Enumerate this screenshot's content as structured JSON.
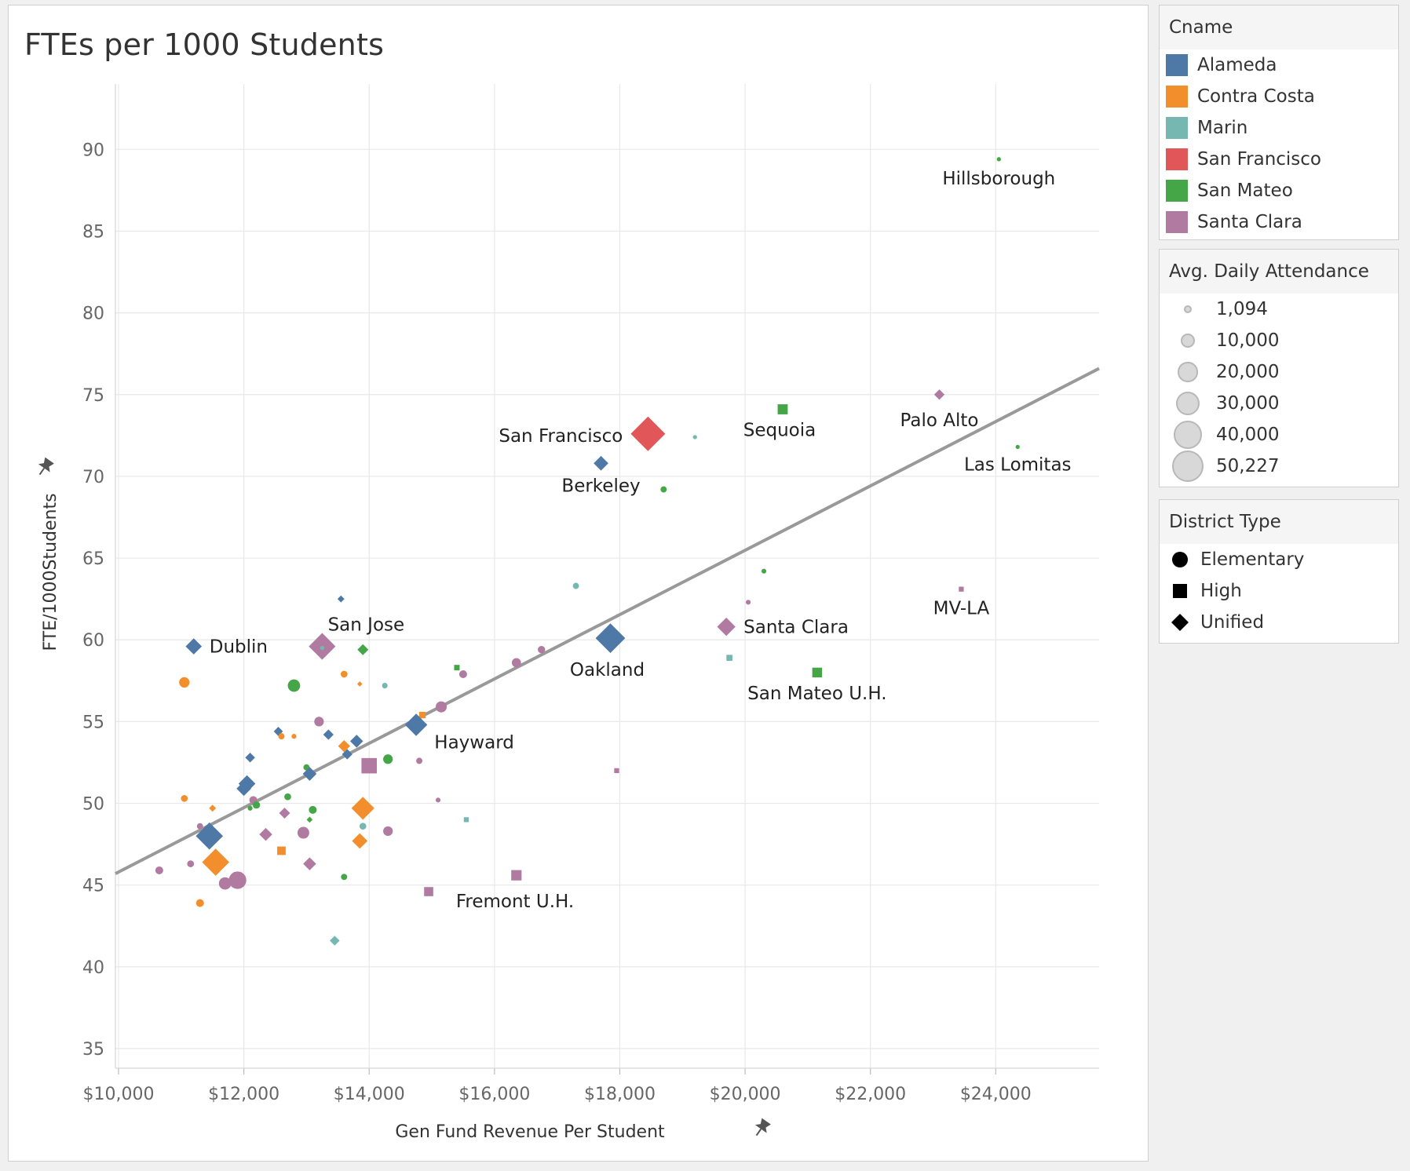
{
  "title": "FTEs per 1000 Students",
  "colors": {
    "Alameda": "#4e79a7",
    "Contra Costa": "#f28e2b",
    "Marin": "#76b7b2",
    "San Francisco": "#e15759",
    "San Mateo": "#44a647",
    "Santa Clara": "#b07aa1",
    "trend": "#999999",
    "grid": "#e8e8e8"
  },
  "legends": {
    "cname": {
      "title": "Cname",
      "items": [
        "Alameda",
        "Contra Costa",
        "Marin",
        "San Francisco",
        "San Mateo",
        "Santa Clara"
      ]
    },
    "size": {
      "title": "Avg. Daily Attendance",
      "items": [
        {
          "label": "1,094",
          "value": 1094
        },
        {
          "label": "10,000",
          "value": 10000
        },
        {
          "label": "20,000",
          "value": 20000
        },
        {
          "label": "30,000",
          "value": 30000
        },
        {
          "label": "40,000",
          "value": 40000
        },
        {
          "label": "50,227",
          "value": 50227
        }
      ]
    },
    "district_type": {
      "title": "District Type",
      "items": [
        {
          "label": "Elementary",
          "shape": "circle"
        },
        {
          "label": "High",
          "shape": "square"
        },
        {
          "label": "Unified",
          "shape": "diamond"
        }
      ]
    }
  },
  "chart_data": {
    "type": "scatter",
    "title": "FTEs per 1000 Students",
    "xlabel": "Gen Fund Revenue Per Student",
    "ylabel": "FTE/1000Students",
    "xlim": [
      9950,
      25650
    ],
    "ylim": [
      33.8,
      94
    ],
    "x_ticks": [
      10000,
      12000,
      14000,
      16000,
      18000,
      20000,
      22000,
      24000
    ],
    "x_tick_labels": [
      "$10,000",
      "$12,000",
      "$14,000",
      "$16,000",
      "$18,000",
      "$20,000",
      "$22,000",
      "$24,000"
    ],
    "y_ticks": [
      35,
      40,
      45,
      50,
      55,
      60,
      65,
      70,
      75,
      80,
      85,
      90
    ],
    "grid": true,
    "trend_line": {
      "x": [
        9950,
        25650
      ],
      "y": [
        45.7,
        76.6
      ]
    },
    "points": [
      {
        "x": 24050,
        "y": 89.4,
        "county": "San Mateo",
        "type": "Elementary",
        "ada": 1100,
        "label": "Hillsborough"
      },
      {
        "x": 23100,
        "y": 75.0,
        "county": "Santa Clara",
        "type": "Unified",
        "ada": 4500,
        "label": "Palo Alto"
      },
      {
        "x": 24350,
        "y": 71.8,
        "county": "San Mateo",
        "type": "Elementary",
        "ada": 1094,
        "label": "Las Lomitas"
      },
      {
        "x": 23450,
        "y": 63.1,
        "county": "Santa Clara",
        "type": "High",
        "ada": 2000,
        "label": "MV-LA"
      },
      {
        "x": 18450,
        "y": 72.6,
        "county": "San Francisco",
        "type": "Unified",
        "ada": 50227,
        "label": "San Francisco"
      },
      {
        "x": 20600,
        "y": 74.1,
        "county": "San Mateo",
        "type": "High",
        "ada": 8500,
        "label": "Sequoia"
      },
      {
        "x": 19200,
        "y": 72.4,
        "county": "Marin",
        "type": "Elementary",
        "ada": 1094
      },
      {
        "x": 17700,
        "y": 70.8,
        "county": "Alameda",
        "type": "Unified",
        "ada": 9000,
        "label": "Berkeley"
      },
      {
        "x": 18700,
        "y": 69.2,
        "county": "San Mateo",
        "type": "Elementary",
        "ada": 2500
      },
      {
        "x": 20300,
        "y": 64.2,
        "county": "San Mateo",
        "type": "Elementary",
        "ada": 1500
      },
      {
        "x": 17300,
        "y": 63.3,
        "county": "Marin",
        "type": "Elementary",
        "ada": 2500
      },
      {
        "x": 20050,
        "y": 62.3,
        "county": "Santa Clara",
        "type": "Elementary",
        "ada": 1500
      },
      {
        "x": 13550,
        "y": 62.5,
        "county": "Alameda",
        "type": "Unified",
        "ada": 2000
      },
      {
        "x": 19700,
        "y": 60.8,
        "county": "Santa Clara",
        "type": "Unified",
        "ada": 14000,
        "label": "Santa Clara"
      },
      {
        "x": 17850,
        "y": 60.1,
        "county": "Alameda",
        "type": "Unified",
        "ada": 37000,
        "label": "Oakland"
      },
      {
        "x": 19750,
        "y": 58.9,
        "county": "Marin",
        "type": "High",
        "ada": 3000
      },
      {
        "x": 21150,
        "y": 58.0,
        "county": "San Mateo",
        "type": "High",
        "ada": 8000,
        "label": "San Mateo U.H."
      },
      {
        "x": 11200,
        "y": 59.6,
        "county": "Alameda",
        "type": "Unified",
        "ada": 11000,
        "label": "Dublin"
      },
      {
        "x": 13250,
        "y": 59.6,
        "county": "Santa Clara",
        "type": "Unified",
        "ada": 30000,
        "label": "San Jose"
      },
      {
        "x": 13250,
        "y": 59.5,
        "county": "Marin",
        "type": "Elementary",
        "ada": 1100
      },
      {
        "x": 13900,
        "y": 59.4,
        "county": "San Mateo",
        "type": "Unified",
        "ada": 5000
      },
      {
        "x": 16750,
        "y": 59.4,
        "county": "Santa Clara",
        "type": "Elementary",
        "ada": 3500
      },
      {
        "x": 16350,
        "y": 58.6,
        "county": "Santa Clara",
        "type": "Elementary",
        "ada": 5500
      },
      {
        "x": 15400,
        "y": 58.3,
        "county": "San Mateo",
        "type": "High",
        "ada": 2500
      },
      {
        "x": 15500,
        "y": 57.9,
        "county": "Santa Clara",
        "type": "Elementary",
        "ada": 4000
      },
      {
        "x": 13600,
        "y": 57.9,
        "county": "Contra Costa",
        "type": "Elementary",
        "ada": 3000
      },
      {
        "x": 13850,
        "y": 57.3,
        "county": "Contra Costa",
        "type": "Unified",
        "ada": 1094
      },
      {
        "x": 14250,
        "y": 57.2,
        "county": "Marin",
        "type": "Elementary",
        "ada": 2000
      },
      {
        "x": 11050,
        "y": 57.4,
        "county": "Contra Costa",
        "type": "Elementary",
        "ada": 7000
      },
      {
        "x": 12800,
        "y": 57.2,
        "county": "San Mateo",
        "type": "Elementary",
        "ada": 10000
      },
      {
        "x": 15150,
        "y": 55.9,
        "county": "Santa Clara",
        "type": "Elementary",
        "ada": 8000
      },
      {
        "x": 14850,
        "y": 55.4,
        "county": "Contra Costa",
        "type": "High",
        "ada": 3500
      },
      {
        "x": 14750,
        "y": 54.8,
        "county": "Alameda",
        "type": "Unified",
        "ada": 21000,
        "label": "Hayward"
      },
      {
        "x": 13200,
        "y": 55.0,
        "county": "Santa Clara",
        "type": "Elementary",
        "ada": 6000
      },
      {
        "x": 12550,
        "y": 54.4,
        "county": "Alameda",
        "type": "Unified",
        "ada": 3500
      },
      {
        "x": 12600,
        "y": 54.1,
        "county": "Contra Costa",
        "type": "Elementary",
        "ada": 2500
      },
      {
        "x": 12800,
        "y": 54.1,
        "county": "Contra Costa",
        "type": "Elementary",
        "ada": 1500
      },
      {
        "x": 13350,
        "y": 54.2,
        "county": "Alameda",
        "type": "Unified",
        "ada": 4500
      },
      {
        "x": 13800,
        "y": 53.8,
        "county": "Alameda",
        "type": "Unified",
        "ada": 7000
      },
      {
        "x": 13600,
        "y": 53.5,
        "county": "Contra Costa",
        "type": "Unified",
        "ada": 6000
      },
      {
        "x": 13650,
        "y": 53.0,
        "county": "Alameda",
        "type": "Unified",
        "ada": 4500
      },
      {
        "x": 12100,
        "y": 52.8,
        "county": "Alameda",
        "type": "Unified",
        "ada": 4000
      },
      {
        "x": 14000,
        "y": 52.3,
        "county": "Santa Clara",
        "type": "High",
        "ada": 20000
      },
      {
        "x": 14300,
        "y": 52.7,
        "county": "San Mateo",
        "type": "Elementary",
        "ada": 6000
      },
      {
        "x": 14800,
        "y": 52.6,
        "county": "Santa Clara",
        "type": "Elementary",
        "ada": 2500
      },
      {
        "x": 13000,
        "y": 52.2,
        "county": "San Mateo",
        "type": "Elementary",
        "ada": 2500
      },
      {
        "x": 13050,
        "y": 51.8,
        "county": "Alameda",
        "type": "Unified",
        "ada": 8000
      },
      {
        "x": 17950,
        "y": 52.0,
        "county": "Santa Clara",
        "type": "High",
        "ada": 2000
      },
      {
        "x": 12050,
        "y": 51.2,
        "county": "Alameda",
        "type": "Unified",
        "ada": 12000
      },
      {
        "x": 12000,
        "y": 50.9,
        "county": "Alameda",
        "type": "Unified",
        "ada": 9000
      },
      {
        "x": 11050,
        "y": 50.3,
        "county": "Contra Costa",
        "type": "Elementary",
        "ada": 3000
      },
      {
        "x": 12150,
        "y": 50.2,
        "county": "Santa Clara",
        "type": "Elementary",
        "ada": 4000
      },
      {
        "x": 12700,
        "y": 50.4,
        "county": "San Mateo",
        "type": "Elementary",
        "ada": 3000
      },
      {
        "x": 15100,
        "y": 50.2,
        "county": "Santa Clara",
        "type": "Elementary",
        "ada": 1500
      },
      {
        "x": 12200,
        "y": 49.9,
        "county": "San Mateo",
        "type": "Elementary",
        "ada": 3500
      },
      {
        "x": 11500,
        "y": 49.7,
        "county": "Contra Costa",
        "type": "Unified",
        "ada": 2000
      },
      {
        "x": 12100,
        "y": 49.7,
        "county": "San Mateo",
        "type": "Elementary",
        "ada": 1500
      },
      {
        "x": 13900,
        "y": 49.7,
        "county": "Contra Costa",
        "type": "Unified",
        "ada": 22000
      },
      {
        "x": 13100,
        "y": 49.6,
        "county": "San Mateo",
        "type": "Elementary",
        "ada": 4000
      },
      {
        "x": 12650,
        "y": 49.4,
        "county": "Santa Clara",
        "type": "Unified",
        "ada": 5000
      },
      {
        "x": 13050,
        "y": 49.0,
        "county": "San Mateo",
        "type": "Unified",
        "ada": 1500
      },
      {
        "x": 15550,
        "y": 49.0,
        "county": "Marin",
        "type": "High",
        "ada": 2000
      },
      {
        "x": 11300,
        "y": 48.6,
        "county": "Santa Clara",
        "type": "Elementary",
        "ada": 2500
      },
      {
        "x": 13900,
        "y": 48.6,
        "county": "Marin",
        "type": "Elementary",
        "ada": 3000
      },
      {
        "x": 14300,
        "y": 48.3,
        "county": "Santa Clara",
        "type": "Elementary",
        "ada": 6000
      },
      {
        "x": 11450,
        "y": 48.0,
        "county": "Alameda",
        "type": "Unified",
        "ada": 31000
      },
      {
        "x": 12350,
        "y": 48.1,
        "county": "Santa Clara",
        "type": "Unified",
        "ada": 7000
      },
      {
        "x": 12950,
        "y": 48.2,
        "county": "Santa Clara",
        "type": "Elementary",
        "ada": 9000
      },
      {
        "x": 13850,
        "y": 47.7,
        "county": "Contra Costa",
        "type": "Unified",
        "ada": 10000
      },
      {
        "x": 12600,
        "y": 47.1,
        "county": "Contra Costa",
        "type": "High",
        "ada": 6000
      },
      {
        "x": 11550,
        "y": 46.4,
        "county": "Contra Costa",
        "type": "Unified",
        "ada": 31000
      },
      {
        "x": 11150,
        "y": 46.3,
        "county": "Santa Clara",
        "type": "Elementary",
        "ada": 3000
      },
      {
        "x": 13050,
        "y": 46.3,
        "county": "Santa Clara",
        "type": "Unified",
        "ada": 7000
      },
      {
        "x": 10650,
        "y": 45.9,
        "county": "Santa Clara",
        "type": "Elementary",
        "ada": 4000
      },
      {
        "x": 16350,
        "y": 45.6,
        "county": "Santa Clara",
        "type": "High",
        "ada": 9000
      },
      {
        "x": 13600,
        "y": 45.5,
        "county": "San Mateo",
        "type": "Elementary",
        "ada": 2500
      },
      {
        "x": 11700,
        "y": 45.1,
        "county": "Santa Clara",
        "type": "Elementary",
        "ada": 10000
      },
      {
        "x": 11900,
        "y": 45.3,
        "county": "Santa Clara",
        "type": "Elementary",
        "ada": 20000
      },
      {
        "x": 14950,
        "y": 44.6,
        "county": "Santa Clara",
        "type": "High",
        "ada": 7000,
        "label": "Fremont U.H."
      },
      {
        "x": 11300,
        "y": 43.9,
        "county": "Contra Costa",
        "type": "Elementary",
        "ada": 4000
      },
      {
        "x": 13450,
        "y": 41.6,
        "county": "Marin",
        "type": "Unified",
        "ada": 4000
      }
    ]
  }
}
